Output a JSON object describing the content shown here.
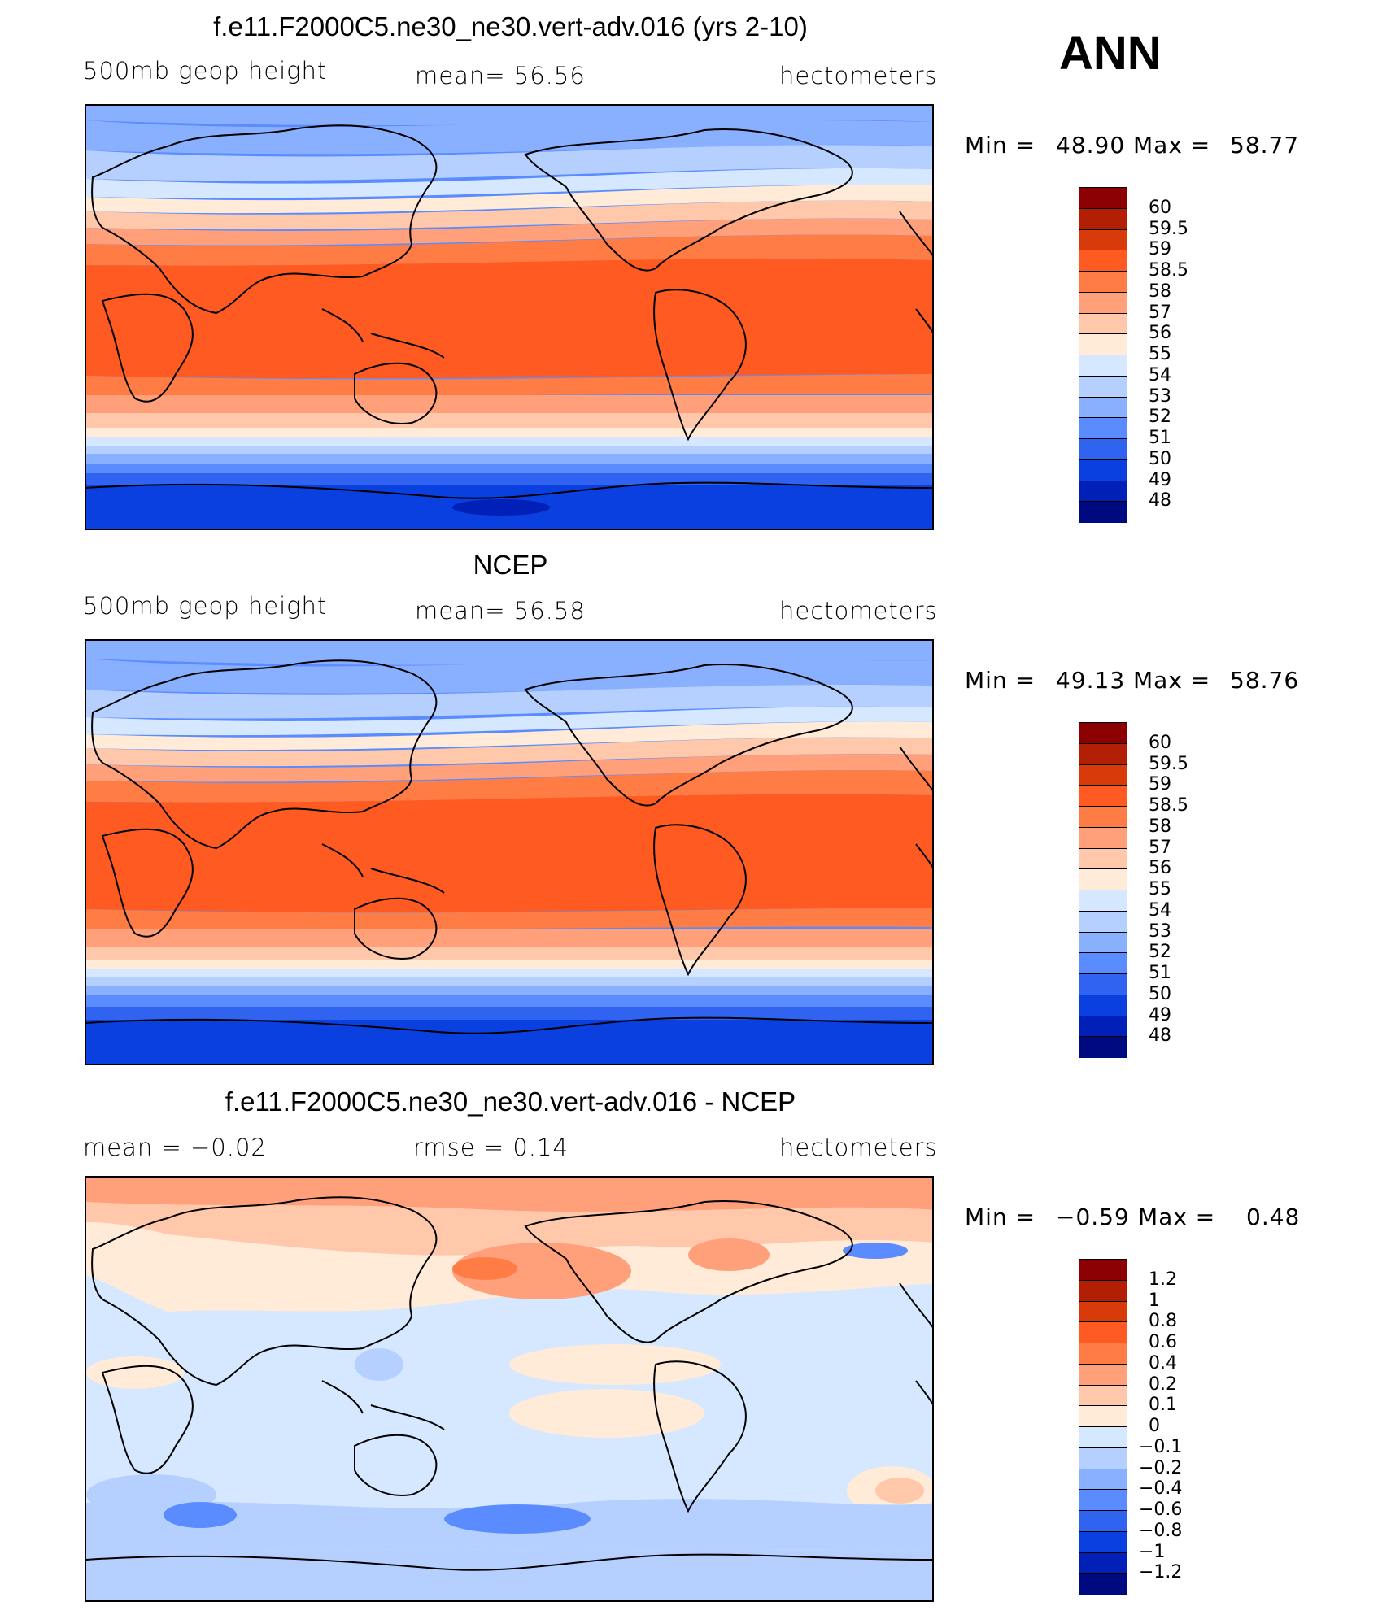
{
  "season": "ANN",
  "panels": [
    {
      "title": "f.e11.F2000C5.ne30_ne30.vert-adv.016 (yrs 2-10)",
      "left_label": "500mb geop height",
      "center_label": "mean=  56.56",
      "right_label": "hectometers",
      "min_label": "Min =",
      "min_value": "48.90",
      "max_label": "Max =",
      "max_value": "58.77",
      "colorbar_labels": [
        "60",
        "59.5",
        "59",
        "58.5",
        "58",
        "57",
        "56",
        "55",
        "54",
        "53",
        "52",
        "51",
        "50",
        "49",
        "48"
      ]
    },
    {
      "title": "NCEP",
      "left_label": "500mb geop height",
      "center_label": "mean=  56.58",
      "right_label": "hectometers",
      "min_label": "Min =",
      "min_value": "49.13",
      "max_label": "Max =",
      "max_value": "58.76",
      "colorbar_labels": [
        "60",
        "59.5",
        "59",
        "58.5",
        "58",
        "57",
        "56",
        "55",
        "54",
        "53",
        "52",
        "51",
        "50",
        "49",
        "48"
      ]
    },
    {
      "title": "f.e11.F2000C5.ne30_ne30.vert-adv.016 - NCEP",
      "left_label": "mean =   −0.02",
      "center_label": "rmse =    0.14",
      "right_label": "hectometers",
      "min_label": "Min =",
      "min_value": "−0.59",
      "max_label": "Max =",
      "max_value": "0.48",
      "colorbar_labels": [
        "1.2",
        "1",
        "0.8",
        "0.6",
        "0.4",
        "0.2",
        "0.1",
        "0",
        "−0.1",
        "−0.2",
        "−0.4",
        "−0.6",
        "−0.8",
        "−1",
        "−1.2"
      ]
    }
  ],
  "colors": {
    "scale": [
      "#8b0000",
      "#b31f05",
      "#d93a0a",
      "#ff5a22",
      "#ff7d45",
      "#ffa07a",
      "#ffc8aa",
      "#ffebd8",
      "#d6e8ff",
      "#b5d0ff",
      "#89b0ff",
      "#5a8cff",
      "#2f63f0",
      "#0a3fe0",
      "#0020b8",
      "#000a80"
    ]
  }
}
